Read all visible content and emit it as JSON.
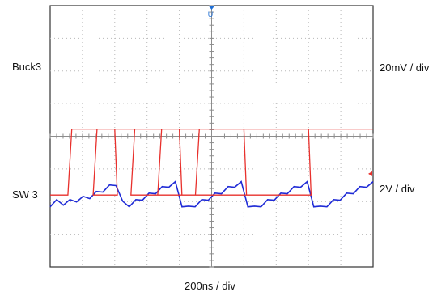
{
  "chart_data": {
    "type": "line",
    "xlabel": "200ns / div",
    "x_divisions": 10,
    "y_divisions": 8,
    "grid": true,
    "trigger_marker": "U",
    "series": [
      {
        "name": "Buck3",
        "scale": "20mV / div",
        "color": "#1f2bd6",
        "y_div": [
          -2.1,
          -2.0,
          -2.05,
          -2.0,
          -1.95,
          -1.9,
          -1.85,
          -1.75,
          -1.65,
          -1.55,
          -1.45,
          -2.05,
          -2.1,
          -2.0,
          -1.9,
          -1.8,
          -1.7,
          -1.6,
          -1.5,
          -1.45,
          -2.1,
          -2.2,
          -2.1,
          -2.0,
          -1.9,
          -1.8,
          -1.7,
          -1.6,
          -1.5,
          -1.45,
          -2.1,
          -2.2,
          -2.1,
          -2.0,
          -1.9,
          -1.8,
          -1.7,
          -1.6,
          -1.5,
          -1.45,
          -2.1,
          -2.2,
          -2.1,
          -2.0,
          -1.9,
          -1.8,
          -1.7,
          -1.6,
          -1.5,
          -1.45
        ]
      },
      {
        "name": "SW 3",
        "scale": "2V / div",
        "color": "#e8302c",
        "edges_div": [
          [
            0.55,
            2.0
          ],
          [
            1.33,
            4.0
          ],
          [
            2.5,
            6.0
          ],
          [
            3.33,
            8.0
          ],
          [
            4.5,
            10.0
          ]
        ],
        "high_div": 0.22,
        "low_div": -1.8
      }
    ]
  }
}
